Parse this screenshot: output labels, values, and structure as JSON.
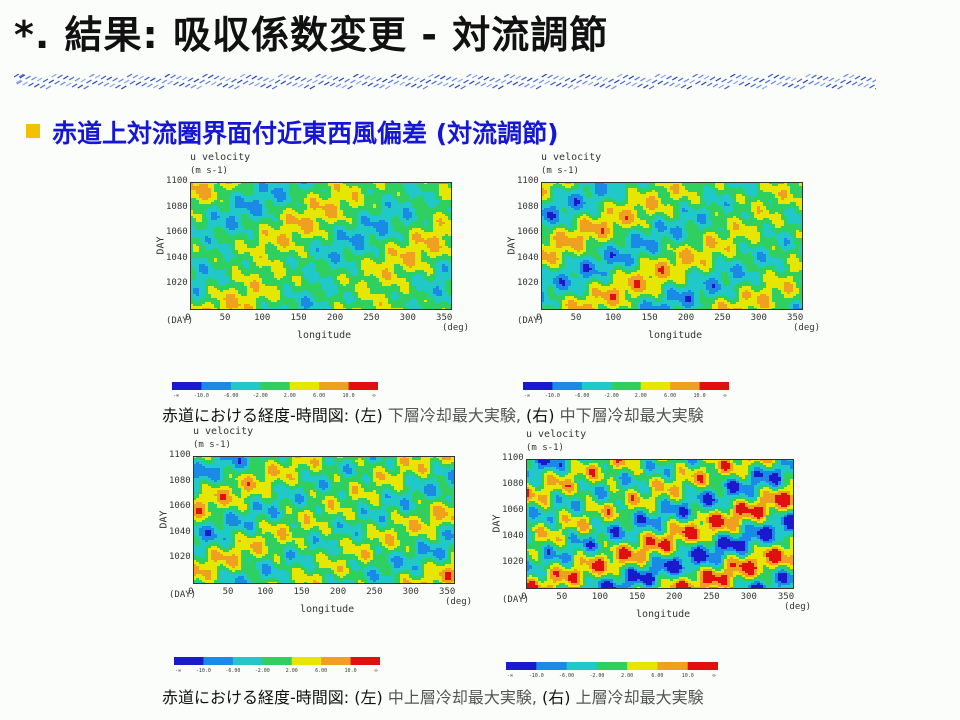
{
  "slide": {
    "title": "*. 結果: 吸収係数変更 - 対流調節",
    "bullet": "赤道上対流圏界面付近東西風偏差 (対流調節)"
  },
  "captions": [
    {
      "lead": "赤道における経度-時間図: ",
      "left_tag": "(左)",
      "left_text": " 下層冷却最大実験, ",
      "right_tag": "(右)",
      "right_text": " 中下層冷却最大実験"
    },
    {
      "lead": "赤道における経度-時間図: ",
      "left_tag": "(左)",
      "left_text": " 中上層冷却最大実験, ",
      "right_tag": "(右)",
      "right_text": " 上層冷却最大実験"
    }
  ],
  "colorbar": {
    "colors": [
      "#1a1acc",
      "#1a8ae6",
      "#20c8c8",
      "#30d060",
      "#e6e600",
      "#f0a020",
      "#e01010"
    ],
    "labels": [
      "-∞",
      "-10.0",
      "-6.00",
      "-2.00",
      "2.00",
      "6.00",
      "10.0",
      "∞"
    ]
  },
  "chart_data": [
    {
      "type": "heatmap",
      "title": "u velocity",
      "units": "(m s-1)",
      "xlabel": "longitude",
      "ylabel": "DAY",
      "x_unit": "(deg)",
      "y_unit": "(DAY)",
      "xlim": [
        0,
        360
      ],
      "ylim": [
        1000,
        1100
      ],
      "xticks": [
        "0",
        "50",
        "100",
        "150",
        "200",
        "250",
        "300",
        "350"
      ],
      "yticks": [
        "1020",
        "1040",
        "1060",
        "1080",
        "1100"
      ],
      "color_levels": [
        -10.0,
        -6.0,
        -2.0,
        2.0,
        6.0,
        10.0
      ],
      "experiment": "下層冷却最大実験"
    },
    {
      "type": "heatmap",
      "title": "u velocity",
      "units": "(m s-1)",
      "xlabel": "longitude",
      "ylabel": "DAY",
      "x_unit": "(deg)",
      "y_unit": "(DAY)",
      "xlim": [
        0,
        360
      ],
      "ylim": [
        1000,
        1100
      ],
      "xticks": [
        "0",
        "50",
        "100",
        "150",
        "200",
        "250",
        "300",
        "350"
      ],
      "yticks": [
        "1020",
        "1040",
        "1060",
        "1080",
        "1100"
      ],
      "color_levels": [
        -10.0,
        -6.0,
        -2.0,
        2.0,
        6.0,
        10.0
      ],
      "experiment": "中下層冷却最大実験"
    },
    {
      "type": "heatmap",
      "title": "u velocity",
      "units": "(m s-1)",
      "xlabel": "longitude",
      "ylabel": "DAY",
      "x_unit": "(deg)",
      "y_unit": "(DAY)",
      "xlim": [
        0,
        360
      ],
      "ylim": [
        1000,
        1100
      ],
      "xticks": [
        "0",
        "50",
        "100",
        "150",
        "200",
        "250",
        "300",
        "350"
      ],
      "yticks": [
        "1020",
        "1040",
        "1060",
        "1080",
        "1100"
      ],
      "color_levels": [
        -10.0,
        -6.0,
        -2.0,
        2.0,
        6.0,
        10.0
      ],
      "experiment": "中上層冷却最大実験"
    },
    {
      "type": "heatmap",
      "title": "u velocity",
      "units": "(m s-1)",
      "xlabel": "longitude",
      "ylabel": "DAY",
      "x_unit": "(deg)",
      "y_unit": "(DAY)",
      "xlim": [
        0,
        360
      ],
      "ylim": [
        1000,
        1100
      ],
      "xticks": [
        "0",
        "50",
        "100",
        "150",
        "200",
        "250",
        "300",
        "350"
      ],
      "yticks": [
        "1020",
        "1040",
        "1060",
        "1080",
        "1100"
      ],
      "color_levels": [
        -10.0,
        -6.0,
        -2.0,
        2.0,
        6.0,
        10.0
      ],
      "experiment": "上層冷却最大実験"
    }
  ]
}
